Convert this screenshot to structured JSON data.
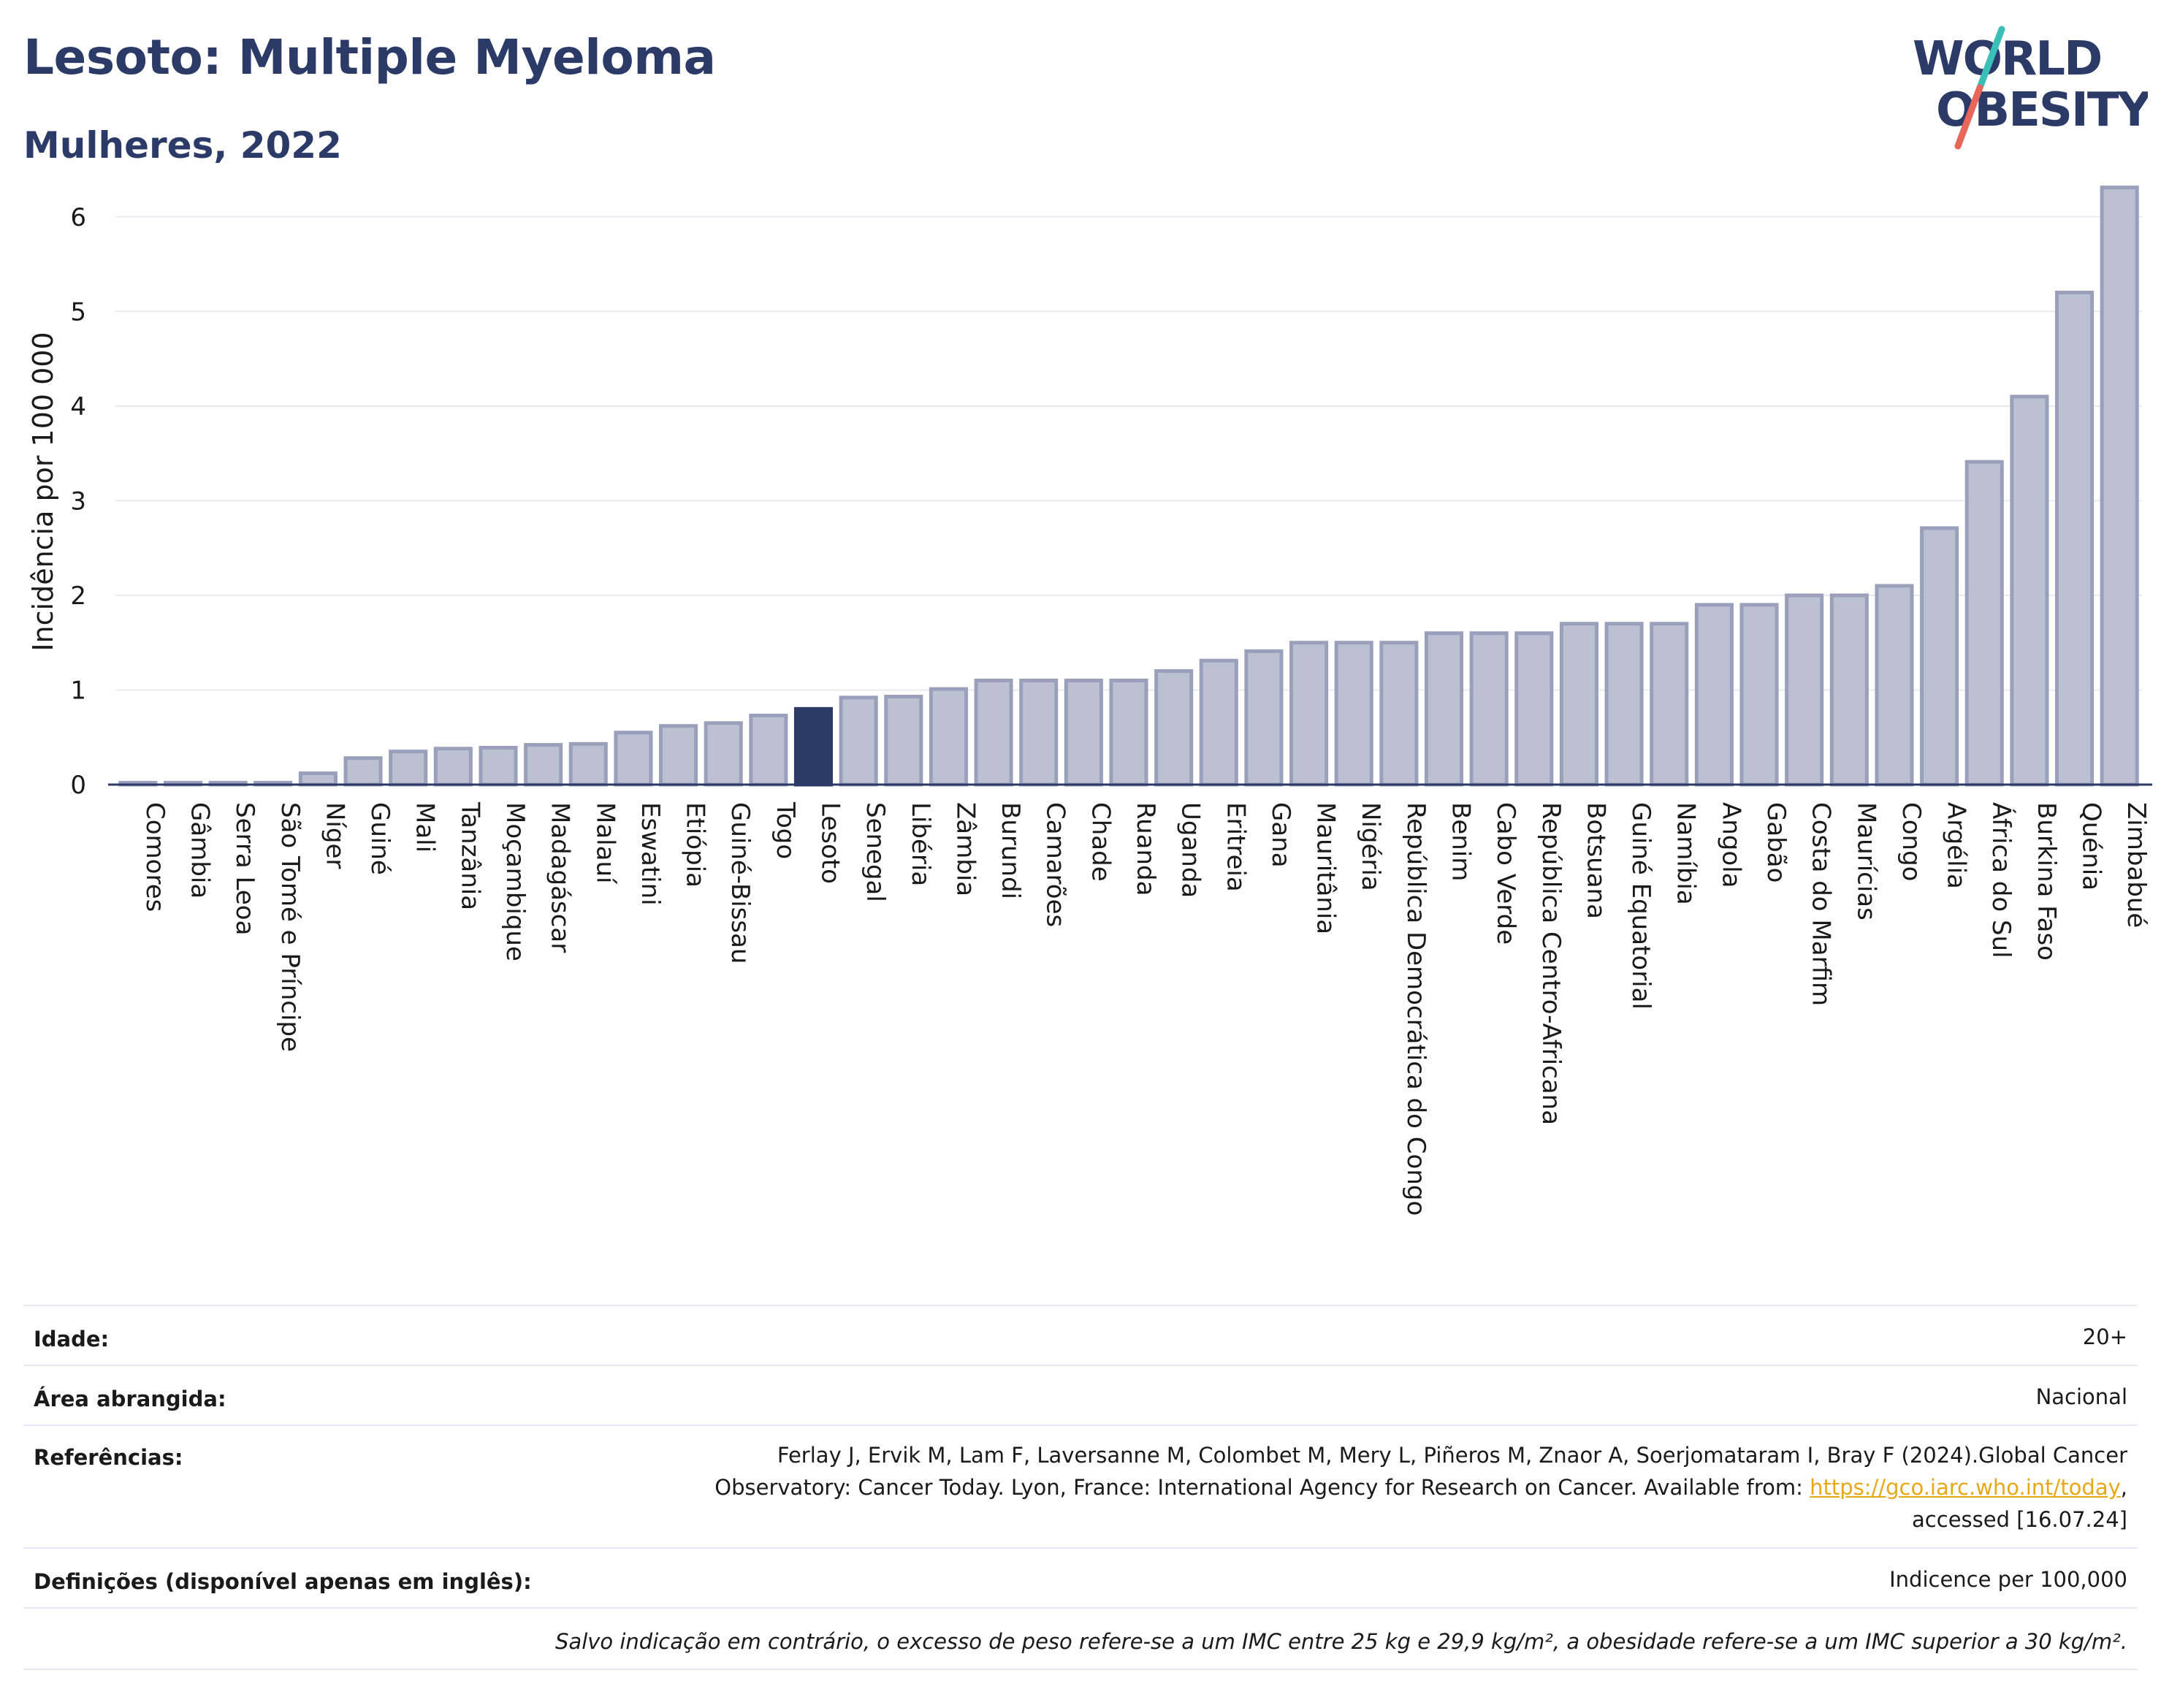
{
  "header": {
    "title": "Lesoto: Multiple Myeloma",
    "subtitle": "Mulheres, 2022"
  },
  "logo": {
    "line1": "WORLD",
    "line2": "OBESITY"
  },
  "colors": {
    "title": "#2b3a67",
    "bar": "#bcc1d1",
    "bar_stroke": "#9aa0bb",
    "highlight": "#2b3a67",
    "logo_slash_teal": "#3bbfb7",
    "logo_slash_red": "#e8665a",
    "link": "#e6a817"
  },
  "chart_data": {
    "type": "bar",
    "ylabel": "Incidência por 100 000",
    "xlabel": "",
    "ylim": [
      0,
      6.5
    ],
    "yticks": [
      0,
      1,
      2,
      3,
      4,
      5,
      6
    ],
    "grid": true,
    "highlight": "Lesoto",
    "categories": [
      "Comores",
      "Gâmbia",
      "Serra Leoa",
      "São Tomé e Príncipe",
      "Níger",
      "Guiné",
      "Mali",
      "Tanzânia",
      "Moçambique",
      "Madagáscar",
      "Malauí",
      "Eswatini",
      "Etiópia",
      "Guiné-Bissau",
      "Togo",
      "Lesoto",
      "Senegal",
      "Libéria",
      "Zâmbia",
      "Burundi",
      "Camarões",
      "Chade",
      "Ruanda",
      "Uganda",
      "Eritreia",
      "Gana",
      "Mauritânia",
      "Nigéria",
      "República Democrática do Congo",
      "Benim",
      "Cabo Verde",
      "República Centro-Africana",
      "Botsuana",
      "Guiné Equatorial",
      "Namíbia",
      "Angola",
      "Gabão",
      "Costa do Marfim",
      "Maurícias",
      "Congo",
      "Argélia",
      "África do Sul",
      "Burkina Faso",
      "Quénia",
      "Zimbabué"
    ],
    "values": [
      0.02,
      0.02,
      0.02,
      0.02,
      0.12,
      0.28,
      0.35,
      0.38,
      0.39,
      0.42,
      0.43,
      0.55,
      0.62,
      0.65,
      0.73,
      0.8,
      0.92,
      0.93,
      1.01,
      1.1,
      1.1,
      1.1,
      1.1,
      1.2,
      1.31,
      1.41,
      1.5,
      1.5,
      1.5,
      1.6,
      1.6,
      1.6,
      1.7,
      1.7,
      1.7,
      1.9,
      1.9,
      2.0,
      2.0,
      2.1,
      2.71,
      3.41,
      4.1,
      5.2,
      6.31
    ]
  },
  "info": {
    "age_label": "Idade:",
    "age_value": "20+",
    "area_label": "Área abrangida:",
    "area_value": "Nacional",
    "ref_label": "Referências:",
    "ref_line1": "Ferlay J, Ervik M, Lam F, Laversanne M, Colombet M, Mery L, Piñeros M, Znaor A, Soerjomataram I, Bray F (2024).Global Cancer",
    "ref_line2_prefix": "Observatory: Cancer Today. Lyon, France: International Agency for Research on Cancer. Available from: ",
    "ref_link": "https://gco.iarc.who.int/today",
    "ref_line2_suffix": ",",
    "ref_line3": "accessed [16.07.24]",
    "def_label": "Definições (disponível apenas em inglês):",
    "def_value": "Indicence per 100,000",
    "note": "Salvo indicação em contrário, o excesso de peso refere-se a um IMC entre 25 kg e 29,9 kg/m², a obesidade refere-se a um IMC superior a 30 kg/m²."
  }
}
